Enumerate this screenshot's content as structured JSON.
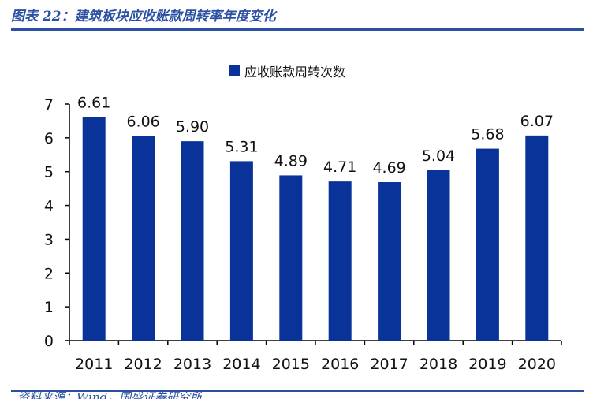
{
  "figure": {
    "title": "图表 22：建筑板块应收账款周转率年度变化",
    "source": "资料来源：Wind，国盛证券研究所"
  },
  "colors": {
    "bar": "#0a3399",
    "accent": "#2b4fa3",
    "axis": "#000000"
  },
  "chart_data": {
    "type": "bar",
    "categories": [
      "2011",
      "2012",
      "2013",
      "2014",
      "2015",
      "2016",
      "2017",
      "2018",
      "2019",
      "2020"
    ],
    "series": [
      {
        "name": "应收账款周转次数",
        "values": [
          6.61,
          6.06,
          5.9,
          5.31,
          4.89,
          4.71,
          4.69,
          5.04,
          5.68,
          6.07
        ]
      }
    ],
    "value_labels": [
      "6.61",
      "6.06",
      "5.90",
      "5.31",
      "4.89",
      "4.71",
      "4.69",
      "5.04",
      "5.68",
      "6.07"
    ],
    "ylim": [
      0,
      7
    ],
    "yticks": [
      "0",
      "1",
      "2",
      "3",
      "4",
      "5",
      "6",
      "7"
    ],
    "legend_position": "top-center",
    "grid": false
  }
}
